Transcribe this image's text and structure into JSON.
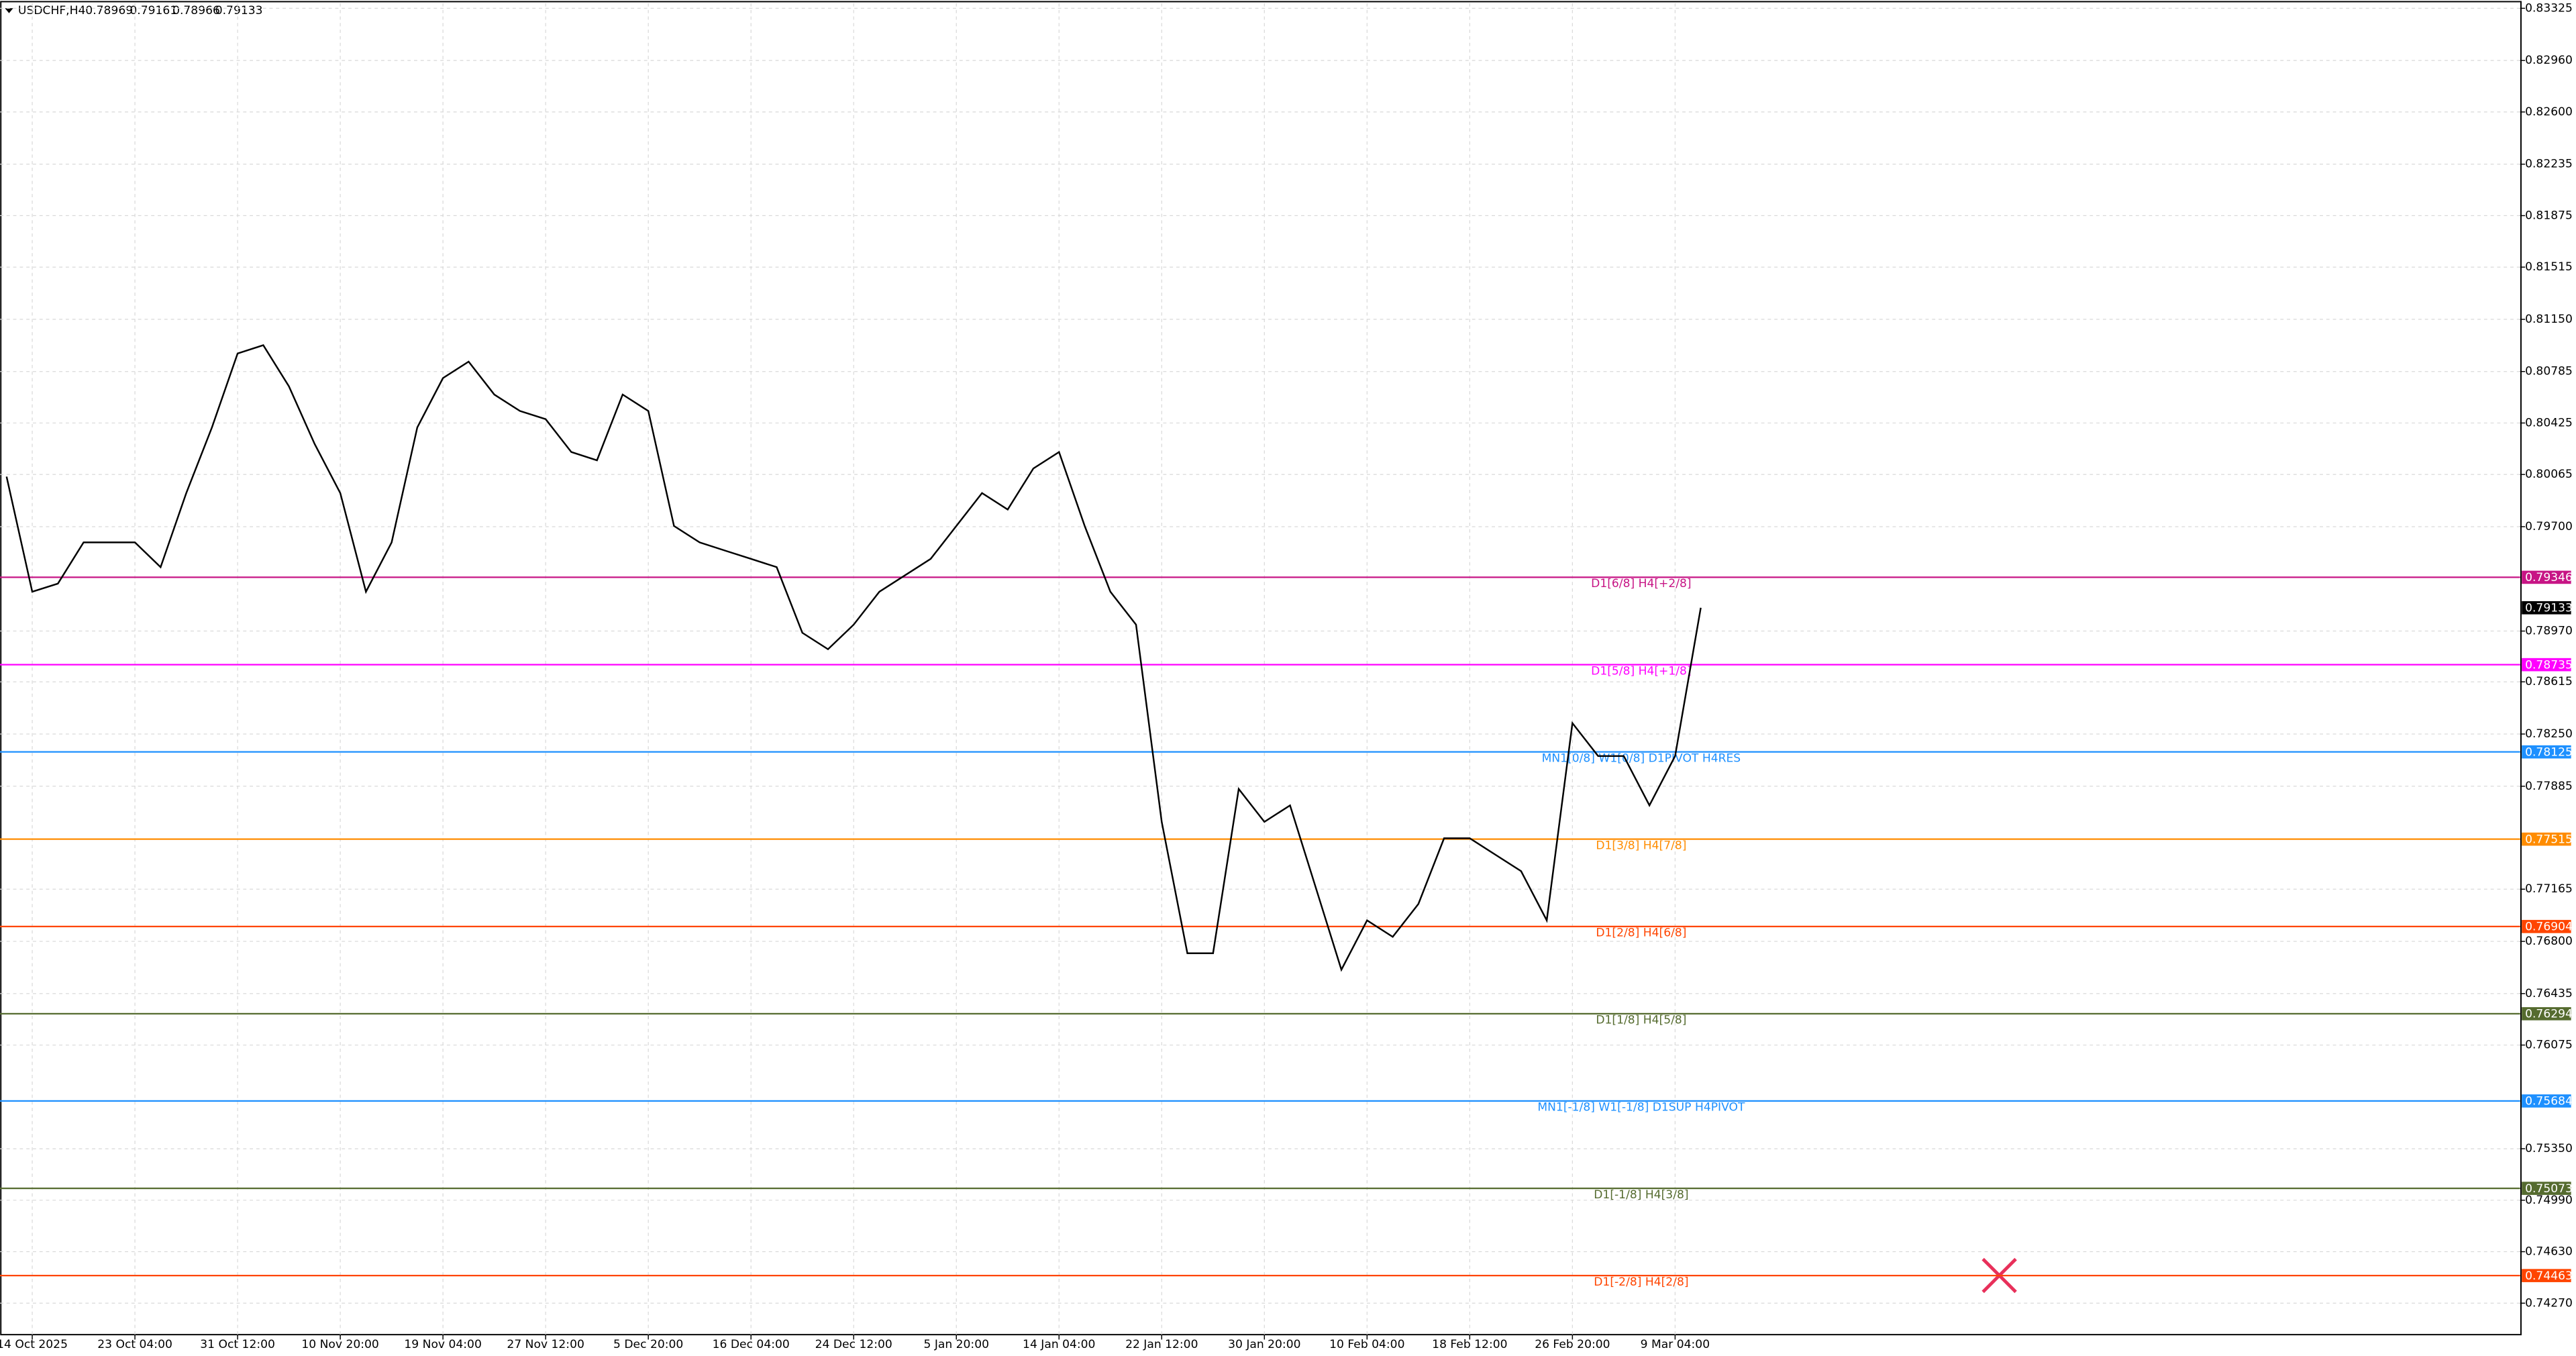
{
  "chart_data": {
    "type": "line",
    "header": {
      "symbol": "USDCHF,H4",
      "open": "0.78969",
      "high": "0.79161",
      "low": "0.78966",
      "close": "0.79133"
    },
    "categories": [
      null,
      "14 Oct 2025",
      null,
      null,
      null,
      "23 Oct 04:00",
      null,
      null,
      null,
      "31 Oct 12:00",
      null,
      null,
      null,
      "10 Nov 20:00",
      null,
      null,
      null,
      "19 Nov 04:00",
      null,
      null,
      null,
      "27 Nov 12:00",
      null,
      null,
      null,
      "5 Dec 20:00",
      null,
      null,
      null,
      "16 Dec 04:00",
      null,
      null,
      null,
      "24 Dec 12:00",
      null,
      null,
      null,
      "5 Jan 20:00",
      null,
      null,
      null,
      "14 Jan 04:00",
      null,
      null,
      null,
      "22 Jan 12:00",
      null,
      null,
      null,
      "30 Jan 20:00",
      null,
      null,
      null,
      "10 Feb 04:00",
      null,
      null,
      null,
      "18 Feb 12:00",
      null,
      null,
      null,
      "26 Feb 20:00",
      null,
      null,
      null,
      "9 Mar 04:00",
      null
    ],
    "series": [
      {
        "color": "#000000",
        "values": [
          0.8005,
          0.79245,
          0.79302,
          0.7959,
          0.7959,
          0.7959,
          0.79417,
          0.79935,
          0.80394,
          0.80911,
          0.80969,
          0.80681,
          0.80279,
          0.79935,
          0.79245,
          0.7959,
          0.80394,
          0.80739,
          0.80854,
          0.80624,
          0.80509,
          0.80452,
          0.80222,
          0.80164,
          0.80624,
          0.80509,
          0.79705,
          0.7959,
          0.79532,
          0.79475,
          0.79417,
          0.78958,
          0.78843,
          0.79015,
          0.79245,
          0.7936,
          0.79475,
          0.79705,
          0.79935,
          0.7982,
          0.80107,
          0.80222,
          0.79705,
          0.79245,
          0.79015,
          0.77636,
          0.76717,
          0.76717,
          0.77866,
          0.77636,
          0.77751,
          0.77177,
          0.76602,
          0.76947,
          0.76832,
          0.77062,
          0.77521,
          0.77521,
          0.77406,
          0.77291,
          0.76947,
          0.78326,
          0.78096,
          0.78096,
          0.77751,
          0.78096,
          0.79133
        ]
      }
    ],
    "ylim": [
      0.7405,
      0.8336
    ],
    "yticks": [
      0.83325,
      {
        "value": 0.8296,
        "label": "0.82960"
      },
      {
        "value": 0.826,
        "label": "0.82600"
      },
      0.82235,
      0.81875,
      0.81515,
      {
        "value": 0.8115,
        "label": "0.81150"
      },
      0.80785,
      0.80425,
      0.80065,
      {
        "value": 0.797,
        "label": "0.79700"
      },
      {
        "value": 0.7897,
        "label": "0.78970"
      },
      0.78615,
      {
        "value": 0.7825,
        "label": "0.78250"
      },
      0.77885,
      0.77165,
      {
        "value": 0.768,
        "label": "0.76800"
      },
      0.76435,
      0.76075,
      {
        "value": 0.7535,
        "label": "0.75350"
      },
      {
        "value": 0.7499,
        "label": "0.74990"
      },
      {
        "value": 0.7463,
        "label": "0.74630"
      },
      {
        "value": 0.7427,
        "label": "0.74270"
      }
    ],
    "grid": true,
    "current_price": {
      "value": 0.79133,
      "color": "#000000"
    },
    "levels": [
      {
        "value": 0.79346,
        "label": "D1[6/8] H4[+2/8]",
        "color": "#c71585"
      },
      {
        "value": 0.78735,
        "label": "D1[5/8] H4[+1/8]",
        "color": "#ff00ff"
      },
      {
        "value": 0.78125,
        "label": "MN1[0/8] W1[0/8] D1PIVOT H4RES",
        "color": "#1e90ff"
      },
      {
        "value": 0.77515,
        "label": "D1[3/8] H4[7/8]",
        "color": "#ff8c00"
      },
      {
        "value": 0.76904,
        "label": "D1[2/8] H4[6/8]",
        "color": "#ff4500"
      },
      {
        "value": 0.76294,
        "label": "D1[1/8] H4[5/8]",
        "color": "#556b2f"
      },
      {
        "value": 0.75684,
        "label": "MN1[-1/8] W1[-1/8] D1SUP H4PIVOT",
        "color": "#1e90ff"
      },
      {
        "value": 0.75073,
        "label": "D1[-1/8] H4[3/8]",
        "color": "#556b2f"
      },
      {
        "value": 0.74463,
        "label": "D1[-2/8] H4[2/8]",
        "color": "#ff4500"
      }
    ]
  }
}
